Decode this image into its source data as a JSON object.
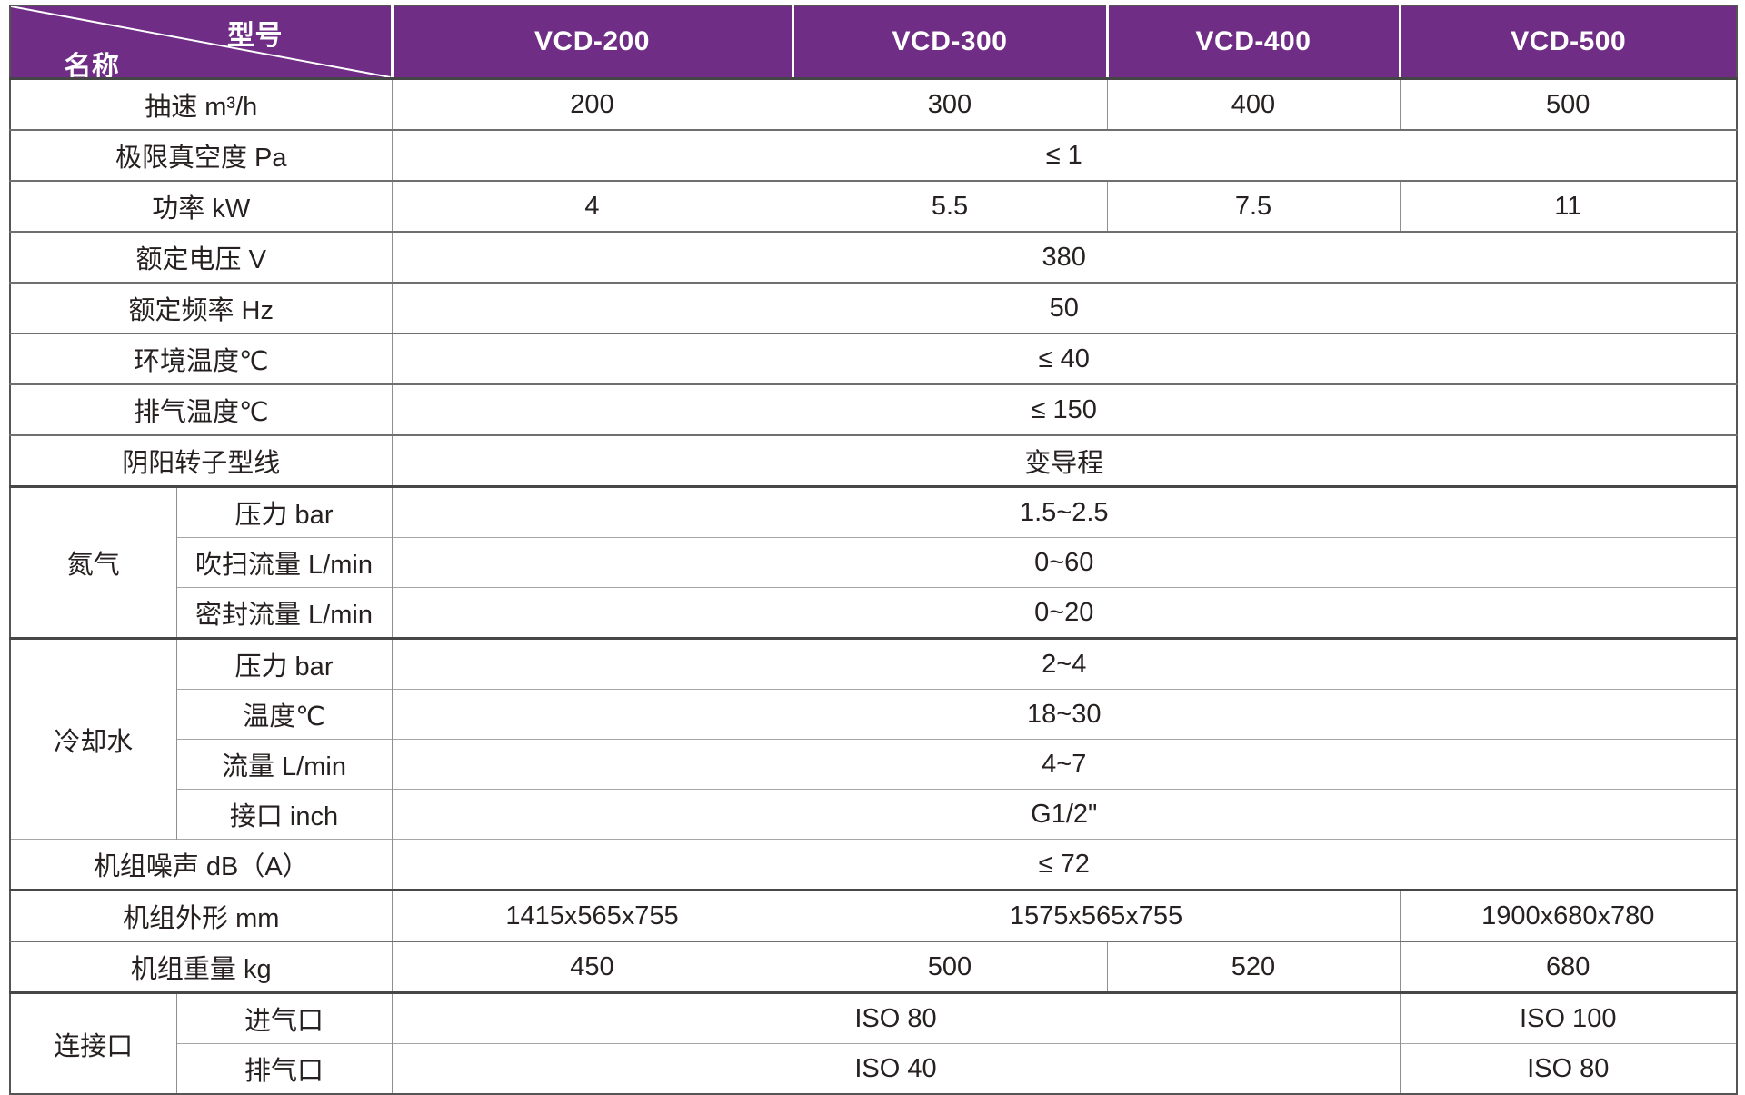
{
  "colors": {
    "header_bg": "#6f2d85",
    "header_text": "#ffffff",
    "body_text": "#262120",
    "grid_light": "#a6a6a6",
    "grid_mid": "#6f6f6f",
    "grid_dark": "#474747"
  },
  "header": {
    "corner": {
      "model_label": "型号",
      "name_label": "名称"
    },
    "models": [
      "VCD-200",
      "VCD-300",
      "VCD-400",
      "VCD-500"
    ]
  },
  "table": {
    "rows": [
      {
        "cells": [
          {
            "k": "label",
            "t": "抽速 m³/h"
          },
          {
            "k": "v",
            "t": "200"
          },
          {
            "k": "v",
            "t": "300"
          },
          {
            "k": "v",
            "t": "400"
          },
          {
            "k": "v",
            "t": "500"
          }
        ]
      },
      {
        "cells": [
          {
            "k": "label",
            "t": "极限真空度 Pa"
          },
          {
            "k": "span",
            "t": "≤ 1"
          }
        ]
      },
      {
        "cells": [
          {
            "k": "label",
            "t": "功率 kW"
          },
          {
            "k": "v",
            "t": "4"
          },
          {
            "k": "v",
            "t": "5.5"
          },
          {
            "k": "v",
            "t": "7.5"
          },
          {
            "k": "v",
            "t": "11"
          }
        ]
      },
      {
        "cells": [
          {
            "k": "label",
            "t": "额定电压 V"
          },
          {
            "k": "span",
            "t": "380"
          }
        ]
      },
      {
        "cells": [
          {
            "k": "label",
            "t": "额定频率 Hz"
          },
          {
            "k": "span",
            "t": "50"
          }
        ]
      },
      {
        "cells": [
          {
            "k": "label",
            "t": "环境温度℃"
          },
          {
            "k": "span",
            "t": "≤ 40"
          }
        ]
      },
      {
        "cells": [
          {
            "k": "label",
            "t": "排气温度℃"
          },
          {
            "k": "span",
            "t": "≤ 150"
          }
        ]
      },
      {
        "cells": [
          {
            "k": "label",
            "t": "阴阳转子型线"
          },
          {
            "k": "span",
            "t": "变导程"
          }
        ]
      },
      {
        "block": true,
        "cells": [
          {
            "k": "group",
            "t": "氮气",
            "rs": 3
          },
          {
            "k": "param",
            "t": "压力 bar"
          },
          {
            "k": "span",
            "t": "1.5~2.5"
          }
        ]
      },
      {
        "sub": true,
        "cells": [
          {
            "k": "param",
            "t": "吹扫流量 L/min"
          },
          {
            "k": "span",
            "t": "0~60"
          }
        ]
      },
      {
        "sub": true,
        "cells": [
          {
            "k": "param",
            "t": "密封流量 L/min"
          },
          {
            "k": "span",
            "t": "0~20"
          }
        ]
      },
      {
        "block": true,
        "cells": [
          {
            "k": "group",
            "t": "冷却水",
            "rs": 4
          },
          {
            "k": "param",
            "t": "压力 bar"
          },
          {
            "k": "span",
            "t": "2~4"
          }
        ]
      },
      {
        "sub": true,
        "cells": [
          {
            "k": "param",
            "t": "温度℃"
          },
          {
            "k": "span",
            "t": "18~30"
          }
        ]
      },
      {
        "sub": true,
        "cells": [
          {
            "k": "param",
            "t": "流量 L/min"
          },
          {
            "k": "span",
            "t": "4~7"
          }
        ]
      },
      {
        "sub": true,
        "cells": [
          {
            "k": "param",
            "t": "接口 inch"
          },
          {
            "k": "span",
            "t": "G1/2\""
          }
        ]
      },
      {
        "sub": true,
        "cells": [
          {
            "k": "label",
            "t": "机组噪声 dB（A）"
          },
          {
            "k": "span",
            "t": "≤ 72"
          }
        ]
      },
      {
        "block": true,
        "cells": [
          {
            "k": "label",
            "t": "机组外形 mm"
          },
          {
            "k": "v",
            "t": "1415x565x755"
          },
          {
            "k": "v",
            "t": "1575x565x755",
            "cs": 2
          },
          {
            "k": "v",
            "t": "1900x680x780"
          }
        ]
      },
      {
        "cells": [
          {
            "k": "label",
            "t": "机组重量 kg"
          },
          {
            "k": "v",
            "t": "450"
          },
          {
            "k": "v",
            "t": "500"
          },
          {
            "k": "v",
            "t": "520"
          },
          {
            "k": "v",
            "t": "680"
          }
        ]
      },
      {
        "block": true,
        "cells": [
          {
            "k": "group",
            "t": "连接口",
            "rs": 2
          },
          {
            "k": "param",
            "t": "进气口"
          },
          {
            "k": "v",
            "t": "ISO 80",
            "cs": 3
          },
          {
            "k": "v",
            "t": "ISO 100"
          }
        ]
      },
      {
        "sub": true,
        "cells": [
          {
            "k": "param",
            "t": "排气口"
          },
          {
            "k": "v",
            "t": "ISO 40",
            "cs": 3
          },
          {
            "k": "v",
            "t": "ISO 80"
          }
        ]
      }
    ]
  }
}
